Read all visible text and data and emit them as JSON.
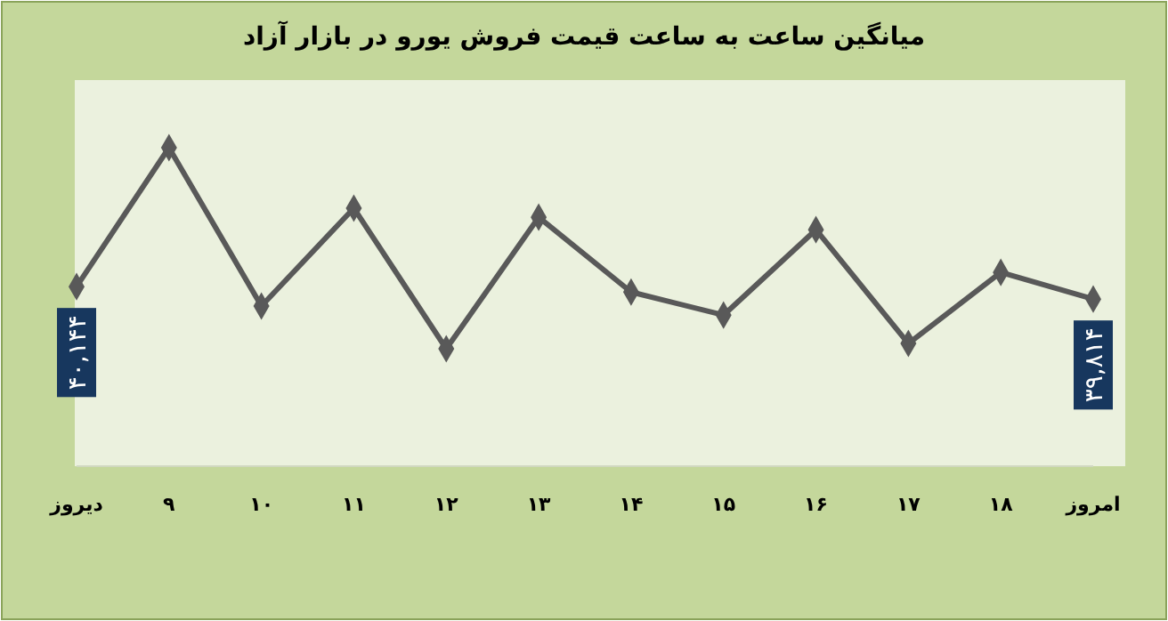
{
  "chart_data": {
    "type": "line",
    "title": "میانگین ساعت به ساعت قیمت فروش یورو در بازار آزاد",
    "categories": [
      "دیروز",
      "۹",
      "۱۰",
      "۱۱",
      "۱۲",
      "۱۳",
      "۱۴",
      "۱۵",
      "۱۶",
      "۱۷",
      "۱۸",
      "امروز"
    ],
    "series": [
      {
        "color": "#595959",
        "values": [
          40144,
          43820,
          39630,
          42220,
          38500,
          41980,
          40000,
          39390,
          41650,
          38640,
          40520,
          39814
        ],
        "value_labels": [
          "۴۰,۱۴۴",
          null,
          null,
          null,
          null,
          null,
          null,
          null,
          null,
          null,
          null,
          "۳۹,۸۱۴"
        ]
      }
    ],
    "marker": "diamond",
    "line_style": "solid"
  }
}
